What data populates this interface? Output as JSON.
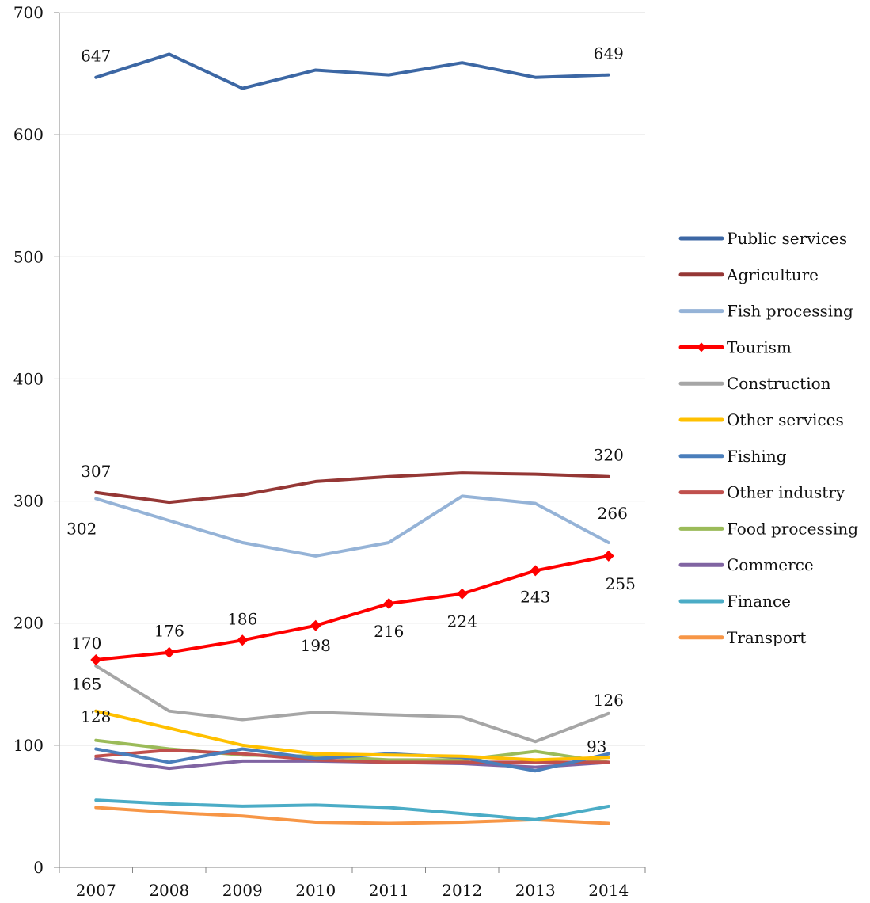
{
  "chart_data": {
    "type": "line",
    "title": "",
    "xlabel": "",
    "ylabel": "",
    "categories": [
      "2007",
      "2008",
      "2009",
      "2010",
      "2011",
      "2012",
      "2013",
      "2014"
    ],
    "ylim": [
      0,
      700
    ],
    "yticks": [
      0,
      100,
      200,
      300,
      400,
      500,
      600,
      700
    ],
    "grid": "horizontal",
    "legend_position": "right",
    "series": [
      {
        "name": "Public services",
        "color": "#3c67a4",
        "values": [
          647,
          666,
          638,
          653,
          649,
          659,
          647,
          649
        ],
        "labels": {
          "0": "647",
          "7": "649"
        }
      },
      {
        "name": "Agriculture",
        "color": "#953735",
        "values": [
          307,
          299,
          305,
          316,
          320,
          323,
          322,
          320
        ],
        "labels": {
          "0": "307",
          "7": "320"
        }
      },
      {
        "name": "Fish processing",
        "color": "#95b3d7",
        "values": [
          302,
          284,
          266,
          255,
          266,
          304,
          298,
          266
        ],
        "labels": {
          "0": "302",
          "7": "266"
        }
      },
      {
        "name": "Tourism",
        "color": "#ff0000",
        "marker": "diamond",
        "values": [
          170,
          176,
          186,
          198,
          216,
          224,
          243,
          255
        ],
        "labels": {
          "0": "170",
          "1": "176",
          "2": "186",
          "3": "198",
          "4": "216",
          "5": "224",
          "6": "243",
          "7": "255"
        }
      },
      {
        "name": "Construction",
        "color": "#a6a6a6",
        "values": [
          165,
          128,
          121,
          127,
          125,
          123,
          103,
          126
        ],
        "labels": {
          "0": "165",
          "7": "126"
        }
      },
      {
        "name": "Other services",
        "color": "#ffc000",
        "values": [
          128,
          114,
          100,
          93,
          92,
          91,
          88,
          90
        ],
        "labels": {
          "0": "128"
        }
      },
      {
        "name": "Fishing",
        "color": "#4a7ebb",
        "values": [
          97,
          86,
          97,
          89,
          93,
          90,
          79,
          93
        ],
        "labels": {
          "7": "93"
        }
      },
      {
        "name": "Other industry",
        "color": "#c0504d",
        "values": [
          91,
          96,
          93,
          88,
          86,
          86,
          86,
          86
        ],
        "labels": {}
      },
      {
        "name": "Food processing",
        "color": "#9bbb59",
        "values": [
          104,
          97,
          92,
          91,
          88,
          88,
          95,
          86
        ],
        "labels": {}
      },
      {
        "name": "Commerce",
        "color": "#8064a2",
        "values": [
          89,
          81,
          87,
          87,
          86,
          85,
          82,
          86
        ],
        "labels": {}
      },
      {
        "name": "Finance",
        "color": "#4bacc6",
        "values": [
          55,
          52,
          50,
          51,
          49,
          44,
          39,
          50
        ],
        "labels": {}
      },
      {
        "name": "Transport",
        "color": "#f79646",
        "values": [
          49,
          45,
          42,
          37,
          36,
          37,
          39,
          36
        ],
        "labels": {}
      }
    ]
  }
}
